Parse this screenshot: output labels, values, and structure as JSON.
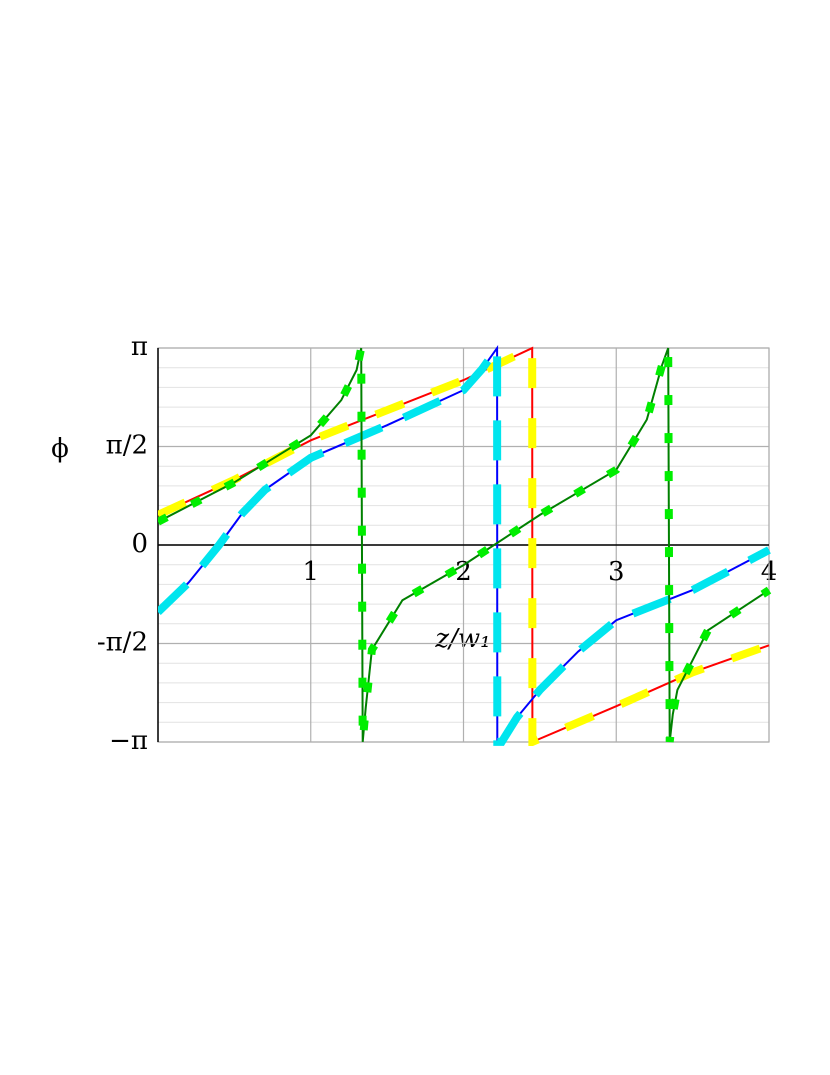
{
  "chart_data": {
    "type": "line",
    "xlabel": "z/w₁",
    "ylabel": "ϕ",
    "xlim": [
      0,
      4
    ],
    "ylim": [
      -3.14159,
      3.14159
    ],
    "xticks": [
      1,
      2,
      3,
      4
    ],
    "yticks": [
      {
        "value": -3.14159,
        "label": "−π"
      },
      {
        "value": -1.5708,
        "label": "-π/2"
      },
      0,
      {
        "value": 1.5708,
        "label": "π/2"
      },
      {
        "value": 3.14159,
        "label": "π"
      }
    ],
    "grid": true,
    "series": [
      {
        "color": "#ff0000",
        "overlay_color": "#ffff00",
        "overlay_dash": "30 30",
        "x": [
          0,
          0.5,
          1,
          1.5,
          2,
          2.45,
          2.451,
          3,
          3.5,
          4
        ],
        "values": [
          0.48,
          1.04,
          1.67,
          2.15,
          2.63,
          3.14,
          -3.14,
          -2.57,
          -2.03,
          -1.6
        ]
      },
      {
        "color": "#0000ff",
        "overlay_color": "#00e5ee",
        "overlay_dash": "40 24",
        "x": [
          0,
          0.2,
          0.4,
          0.55,
          0.7,
          1,
          1.5,
          2,
          2.12,
          2.22,
          2.221,
          2.25,
          2.35,
          2.5,
          2.75,
          3,
          3.5,
          4
        ],
        "values": [
          -1.07,
          -0.6,
          0,
          0.5,
          0.88,
          1.39,
          1.91,
          2.47,
          2.8,
          3.14,
          -3.14,
          -3.14,
          -2.75,
          -2.31,
          -1.7,
          -1.2,
          -0.72,
          -0.08
        ]
      },
      {
        "color": "#008000",
        "overlay_color": "#00ee00",
        "overlay_dash": "10 28",
        "x": [
          0,
          0.5,
          1,
          1.2,
          1.3,
          1.33,
          1.34,
          1.36,
          1.4,
          1.6,
          2,
          2.5,
          3,
          3.2,
          3.3,
          3.34,
          3.35,
          3.37,
          3.4,
          3.6,
          4
        ],
        "values": [
          0.37,
          1.0,
          1.75,
          2.31,
          2.79,
          3.14,
          -3.14,
          -2.6,
          -1.67,
          -0.88,
          -0.32,
          0.48,
          1.2,
          2.0,
          2.87,
          3.14,
          -3.14,
          -2.7,
          -2.31,
          -1.36,
          -0.72
        ]
      }
    ]
  }
}
